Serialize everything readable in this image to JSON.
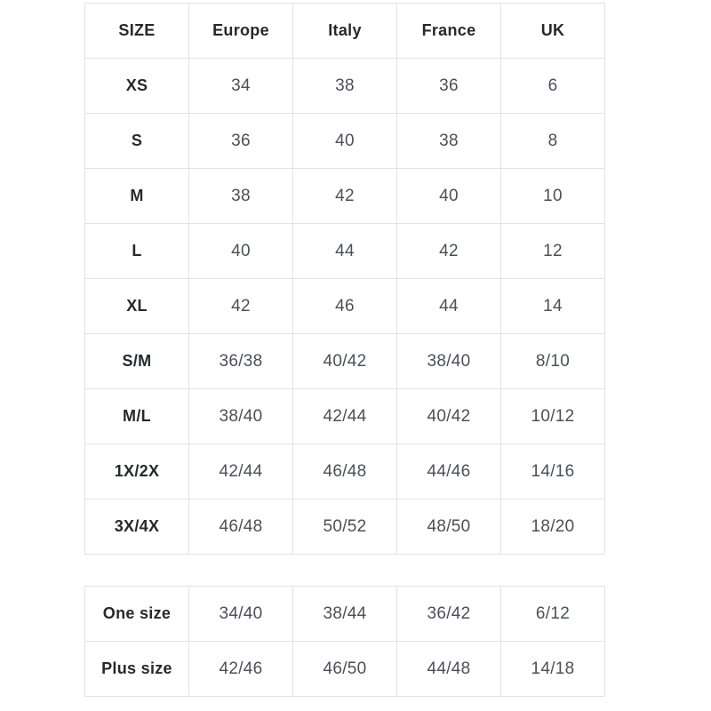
{
  "colors": {
    "background": "#ffffff",
    "grid_border": "#e3e3e4",
    "header_text": "#26292e",
    "value_text": "#4b5058"
  },
  "chart_data": [
    {
      "type": "table",
      "columns": [
        "SIZE",
        "Europe",
        "Italy",
        "France",
        "UK"
      ],
      "rows": [
        [
          "XS",
          "34",
          "38",
          "36",
          "6"
        ],
        [
          "S",
          "36",
          "40",
          "38",
          "8"
        ],
        [
          "M",
          "38",
          "42",
          "40",
          "10"
        ],
        [
          "L",
          "40",
          "44",
          "42",
          "12"
        ],
        [
          "XL",
          "42",
          "46",
          "44",
          "14"
        ],
        [
          "S/M",
          "36/38",
          "40/42",
          "38/40",
          "8/10"
        ],
        [
          "M/L",
          "38/40",
          "42/44",
          "40/42",
          "10/12"
        ],
        [
          "1X/2X",
          "42/44",
          "46/48",
          "44/46",
          "14/16"
        ],
        [
          "3X/4X",
          "46/48",
          "50/52",
          "48/50",
          "18/20"
        ]
      ],
      "layout": {
        "grid": true,
        "header_row": true,
        "bold_first_column": true
      }
    },
    {
      "type": "table",
      "columns": [],
      "rows": [
        [
          "One size",
          "34/40",
          "38/44",
          "36/42",
          "6/12"
        ],
        [
          "Plus size",
          "42/46",
          "46/50",
          "44/48",
          "14/18"
        ]
      ],
      "layout": {
        "grid": true,
        "header_row": false,
        "bold_first_column": true
      }
    }
  ]
}
